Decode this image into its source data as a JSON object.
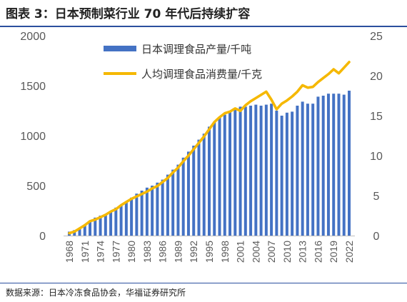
{
  "title": "图表 3：日本预制菜行业 70 年代后持续扩容",
  "source": "数据来源：日本冷冻食品协会，华福证券研究所",
  "colors": {
    "bar": "#4472c4",
    "line": "#f5b800",
    "axis_text": "#595959",
    "rule": "#2b4f9e"
  },
  "chart_data": {
    "type": "bar",
    "x": [
      1968,
      1969,
      1970,
      1971,
      1972,
      1973,
      1974,
      1975,
      1976,
      1977,
      1978,
      1979,
      1980,
      1981,
      1982,
      1983,
      1984,
      1985,
      1986,
      1987,
      1988,
      1989,
      1990,
      1991,
      1992,
      1993,
      1994,
      1995,
      1996,
      1997,
      1998,
      1999,
      2000,
      2001,
      2002,
      2003,
      2004,
      2005,
      2006,
      2007,
      2008,
      2009,
      2010,
      2011,
      2012,
      2013,
      2014,
      2015,
      2016,
      2017,
      2018,
      2019,
      2020,
      2021,
      2022
    ],
    "x_tick_labels": [
      "1968",
      "1971",
      "1974",
      "1977",
      "1980",
      "1983",
      "1986",
      "1989",
      "1992",
      "1995",
      "1998",
      "2001",
      "2004",
      "2007",
      "2010",
      "2013",
      "2016",
      "2019",
      "2022"
    ],
    "series": [
      {
        "name": "日本调理食品产量/千吨",
        "type": "bar",
        "axis": "left",
        "values": [
          40,
          55,
          75,
          110,
          150,
          180,
          200,
          210,
          245,
          280,
          310,
          340,
          380,
          420,
          450,
          480,
          500,
          530,
          560,
          610,
          660,
          710,
          780,
          840,
          900,
          960,
          1020,
          1090,
          1140,
          1180,
          1210,
          1240,
          1260,
          1290,
          1290,
          1300,
          1310,
          1300,
          1310,
          1320,
          1250,
          1200,
          1230,
          1240,
          1300,
          1340,
          1320,
          1320,
          1390,
          1400,
          1420,
          1420,
          1420,
          1410,
          1450
        ]
      },
      {
        "name": "人均调理食品消费量/千克",
        "type": "line",
        "axis": "right",
        "values": [
          0.3,
          0.5,
          0.9,
          1.3,
          1.8,
          2.0,
          2.3,
          2.6,
          3.0,
          3.3,
          3.8,
          4.2,
          4.6,
          4.9,
          5.2,
          5.5,
          5.9,
          6.2,
          6.7,
          7.2,
          7.9,
          8.5,
          9.3,
          10.0,
          10.8,
          11.6,
          12.4,
          13.3,
          14.2,
          14.8,
          15.3,
          15.5,
          15.9,
          15.6,
          16.3,
          16.8,
          17.2,
          17.6,
          18.0,
          17.0,
          15.8,
          16.5,
          16.9,
          17.4,
          18.0,
          18.8,
          18.5,
          18.6,
          19.2,
          19.7,
          20.2,
          20.8,
          20.3,
          21.0,
          21.7
        ]
      }
    ],
    "ylim_left": [
      0,
      2000
    ],
    "yticks_left": [
      0,
      500,
      1000,
      1500,
      2000
    ],
    "ylim_right": [
      0,
      25
    ],
    "yticks_right": [
      0,
      5,
      10,
      15,
      20,
      25
    ],
    "legend_position": "top-center",
    "grid": false
  }
}
